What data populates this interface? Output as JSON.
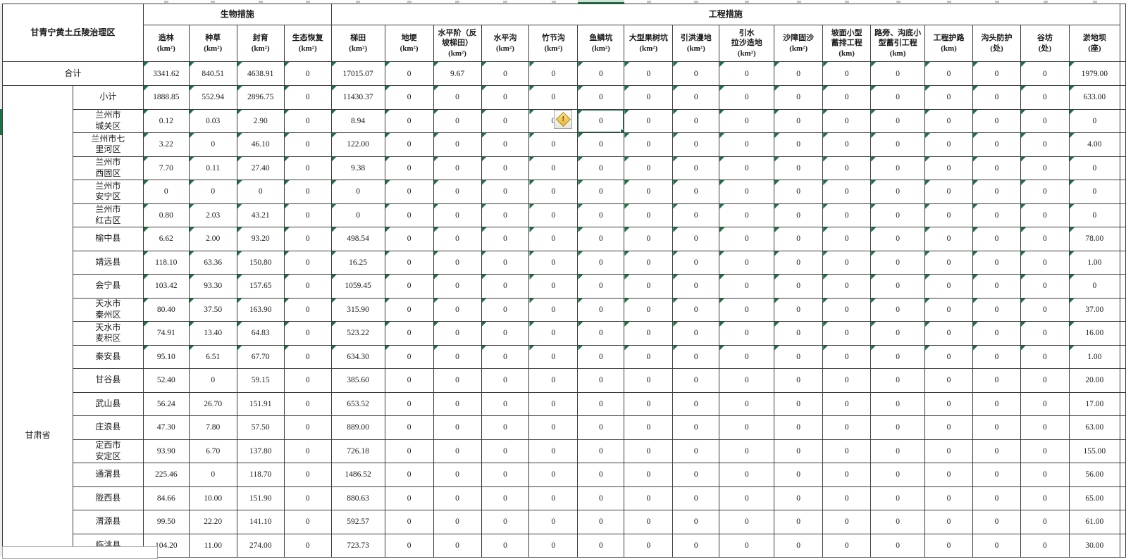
{
  "table": {
    "corner_header": "甘青宁黄土丘陵治理区",
    "groups": [
      {
        "label": "生物措施",
        "span": 4
      },
      {
        "label": "工程措施",
        "span": 16
      }
    ],
    "columns": [
      {
        "label": "造林\n(km²)"
      },
      {
        "label": "种草\n(km²)"
      },
      {
        "label": "封育\n(km²)"
      },
      {
        "label": "生态恢复\n(km²)"
      },
      {
        "label": "梯田\n(km²)"
      },
      {
        "label": "地埂\n(km²)"
      },
      {
        "label": "水平阶（反\n坡梯田）\n(km²)"
      },
      {
        "label": "水平沟\n(km²)"
      },
      {
        "label": "竹节沟\n(km²)"
      },
      {
        "label": "鱼鳞坑\n(km²)"
      },
      {
        "label": "大型果树坑\n(km²)"
      },
      {
        "label": "引洪漫地\n(km²)"
      },
      {
        "label": "引水\n拉沙造地\n(km²)"
      },
      {
        "label": "沙障固沙\n(km²)"
      },
      {
        "label": "坡面小型\n蓄排工程\n(km)"
      },
      {
        "label": "路旁、沟底小\n型蓄引工程\n(km)"
      },
      {
        "label": "工程护路\n(km)"
      },
      {
        "label": "沟头防护\n(处)"
      },
      {
        "label": "谷坊\n(处)"
      },
      {
        "label": "淤地坝\n(座)"
      }
    ],
    "province_label": "甘肃省",
    "rows": [
      {
        "label": "合计",
        "total": true,
        "error_flags": true,
        "values": [
          "3341.62",
          "840.51",
          "4638.91",
          "0",
          "17015.07",
          "0",
          "9.67",
          "0",
          "0",
          "0",
          "0",
          "0",
          "0",
          "0",
          "0",
          "0",
          "0",
          "0",
          "0",
          "1979.00"
        ]
      },
      {
        "label": "小计",
        "error_flags": true,
        "values": [
          "1888.85",
          "552.94",
          "2896.75",
          "0",
          "11430.37",
          "0",
          "0",
          "0",
          "0",
          "0",
          "0",
          "0",
          "0",
          "0",
          "0",
          "0",
          "0",
          "0",
          "0",
          "633.00"
        ]
      },
      {
        "label": "兰州市\n城关区",
        "error_flags": true,
        "values": [
          "0.12",
          "0.03",
          "2.90",
          "0",
          "8.94",
          "0",
          "0",
          "0",
          "0",
          "0",
          "0",
          "0",
          "0",
          "0",
          "0",
          "0",
          "0",
          "0",
          "0",
          "0"
        ]
      },
      {
        "label": "兰州市七\n里河区",
        "error_flags": true,
        "values": [
          "3.22",
          "0",
          "46.10",
          "0",
          "122.00",
          "0",
          "0",
          "0",
          "0",
          "0",
          "0",
          "0",
          "0",
          "0",
          "0",
          "0",
          "0",
          "0",
          "0",
          "4.00"
        ]
      },
      {
        "label": "兰州市\n西固区",
        "error_flags": true,
        "values": [
          "7.70",
          "0.11",
          "27.40",
          "0",
          "9.38",
          "0",
          "0",
          "0",
          "0",
          "0",
          "0",
          "0",
          "0",
          "0",
          "0",
          "0",
          "0",
          "0",
          "0",
          "0"
        ]
      },
      {
        "label": "兰州市\n安宁区",
        "error_flags": true,
        "values": [
          "0",
          "0",
          "0",
          "0",
          "0",
          "0",
          "0",
          "0",
          "0",
          "0",
          "0",
          "0",
          "0",
          "0",
          "0",
          "0",
          "0",
          "0",
          "0",
          "0"
        ]
      },
      {
        "label": "兰州市\n红古区",
        "error_flags": true,
        "values": [
          "0.80",
          "2.03",
          "43.21",
          "0",
          "0",
          "0",
          "0",
          "0",
          "0",
          "0",
          "0",
          "0",
          "0",
          "0",
          "0",
          "0",
          "0",
          "0",
          "0",
          "0"
        ]
      },
      {
        "label": "榆中县",
        "error_flags": true,
        "values": [
          "6.62",
          "2.00",
          "93.20",
          "0",
          "498.54",
          "0",
          "0",
          "0",
          "0",
          "0",
          "0",
          "0",
          "0",
          "0",
          "0",
          "0",
          "0",
          "0",
          "0",
          "78.00"
        ]
      },
      {
        "label": "靖远县",
        "error_flags": true,
        "values": [
          "118.10",
          "63.36",
          "150.80",
          "0",
          "16.25",
          "0",
          "0",
          "0",
          "0",
          "0",
          "0",
          "0",
          "0",
          "0",
          "0",
          "0",
          "0",
          "0",
          "0",
          "1.00"
        ]
      },
      {
        "label": "会宁县",
        "error_flags": true,
        "values": [
          "103.42",
          "93.30",
          "157.65",
          "0",
          "1059.45",
          "0",
          "0",
          "0",
          "0",
          "0",
          "0",
          "0",
          "0",
          "0",
          "0",
          "0",
          "0",
          "0",
          "0",
          "0"
        ]
      },
      {
        "label": "天水市\n秦州区",
        "error_flags": true,
        "values": [
          "80.40",
          "37.50",
          "163.90",
          "0",
          "315.90",
          "0",
          "0",
          "0",
          "0",
          "0",
          "0",
          "0",
          "0",
          "0",
          "0",
          "0",
          "0",
          "0",
          "0",
          "37.00"
        ]
      },
      {
        "label": "天水市\n麦积区",
        "error_flags": true,
        "values": [
          "74.91",
          "13.40",
          "64.83",
          "0",
          "523.22",
          "0",
          "0",
          "0",
          "0",
          "0",
          "0",
          "0",
          "0",
          "0",
          "0",
          "0",
          "0",
          "0",
          "0",
          "16.00"
        ]
      },
      {
        "label": "秦安县",
        "error_flags": true,
        "values": [
          "95.10",
          "6.51",
          "67.70",
          "0",
          "634.30",
          "0",
          "0",
          "0",
          "0",
          "0",
          "0",
          "0",
          "0",
          "0",
          "0",
          "0",
          "0",
          "0",
          "0",
          "1.00"
        ]
      },
      {
        "label": "甘谷县",
        "error_flags": false,
        "values": [
          "52.40",
          "0",
          "59.15",
          "0",
          "385.60",
          "0",
          "0",
          "0",
          "0",
          "0",
          "0",
          "0",
          "0",
          "0",
          "0",
          "0",
          "0",
          "0",
          "0",
          "20.00"
        ]
      },
      {
        "label": "武山县",
        "error_flags": false,
        "values": [
          "56.24",
          "26.70",
          "151.91",
          "0",
          "653.52",
          "0",
          "0",
          "0",
          "0",
          "0",
          "0",
          "0",
          "0",
          "0",
          "0",
          "0",
          "0",
          "0",
          "0",
          "17.00"
        ]
      },
      {
        "label": "庄浪县",
        "error_flags": false,
        "values": [
          "47.30",
          "7.80",
          "57.50",
          "0",
          "889.00",
          "0",
          "0",
          "0",
          "0",
          "0",
          "0",
          "0",
          "0",
          "0",
          "0",
          "0",
          "0",
          "0",
          "0",
          "63.00"
        ]
      },
      {
        "label": "定西市\n安定区",
        "error_flags": false,
        "values": [
          "93.90",
          "6.70",
          "137.80",
          "0",
          "726.18",
          "0",
          "0",
          "0",
          "0",
          "0",
          "0",
          "0",
          "0",
          "0",
          "0",
          "0",
          "0",
          "0",
          "0",
          "155.00"
        ]
      },
      {
        "label": "通渭县",
        "error_flags": false,
        "values": [
          "225.46",
          "0",
          "118.70",
          "0",
          "1486.52",
          "0",
          "0",
          "0",
          "0",
          "0",
          "0",
          "0",
          "0",
          "0",
          "0",
          "0",
          "0",
          "0",
          "0",
          "56.00"
        ]
      },
      {
        "label": "陇西县",
        "error_flags": false,
        "values": [
          "84.66",
          "10.00",
          "151.90",
          "0",
          "880.63",
          "0",
          "0",
          "0",
          "0",
          "0",
          "0",
          "0",
          "0",
          "0",
          "0",
          "0",
          "0",
          "0",
          "0",
          "65.00"
        ]
      },
      {
        "label": "渭源县",
        "error_flags": false,
        "values": [
          "99.50",
          "22.20",
          "141.10",
          "0",
          "592.57",
          "0",
          "0",
          "0",
          "0",
          "0",
          "0",
          "0",
          "0",
          "0",
          "0",
          "0",
          "0",
          "0",
          "0",
          "61.00"
        ]
      },
      {
        "label": "临洮县",
        "error_flags": false,
        "values": [
          "104.20",
          "11.00",
          "274.00",
          "0",
          "723.73",
          "0",
          "0",
          "0",
          "0",
          "0",
          "0",
          "0",
          "0",
          "0",
          "0",
          "0",
          "0",
          "0",
          "0",
          "30.00"
        ]
      }
    ],
    "selection": {
      "row_index": 2,
      "col_index": 9,
      "row_label": "兰州市城关区",
      "column_label": "鱼鳞坑"
    }
  },
  "icons": {
    "warning_glyph": "!"
  },
  "colors": {
    "selection_green": "#1e7145",
    "triangle_green": "#1e7145",
    "selected_column_fill": "#cfe3d4"
  }
}
